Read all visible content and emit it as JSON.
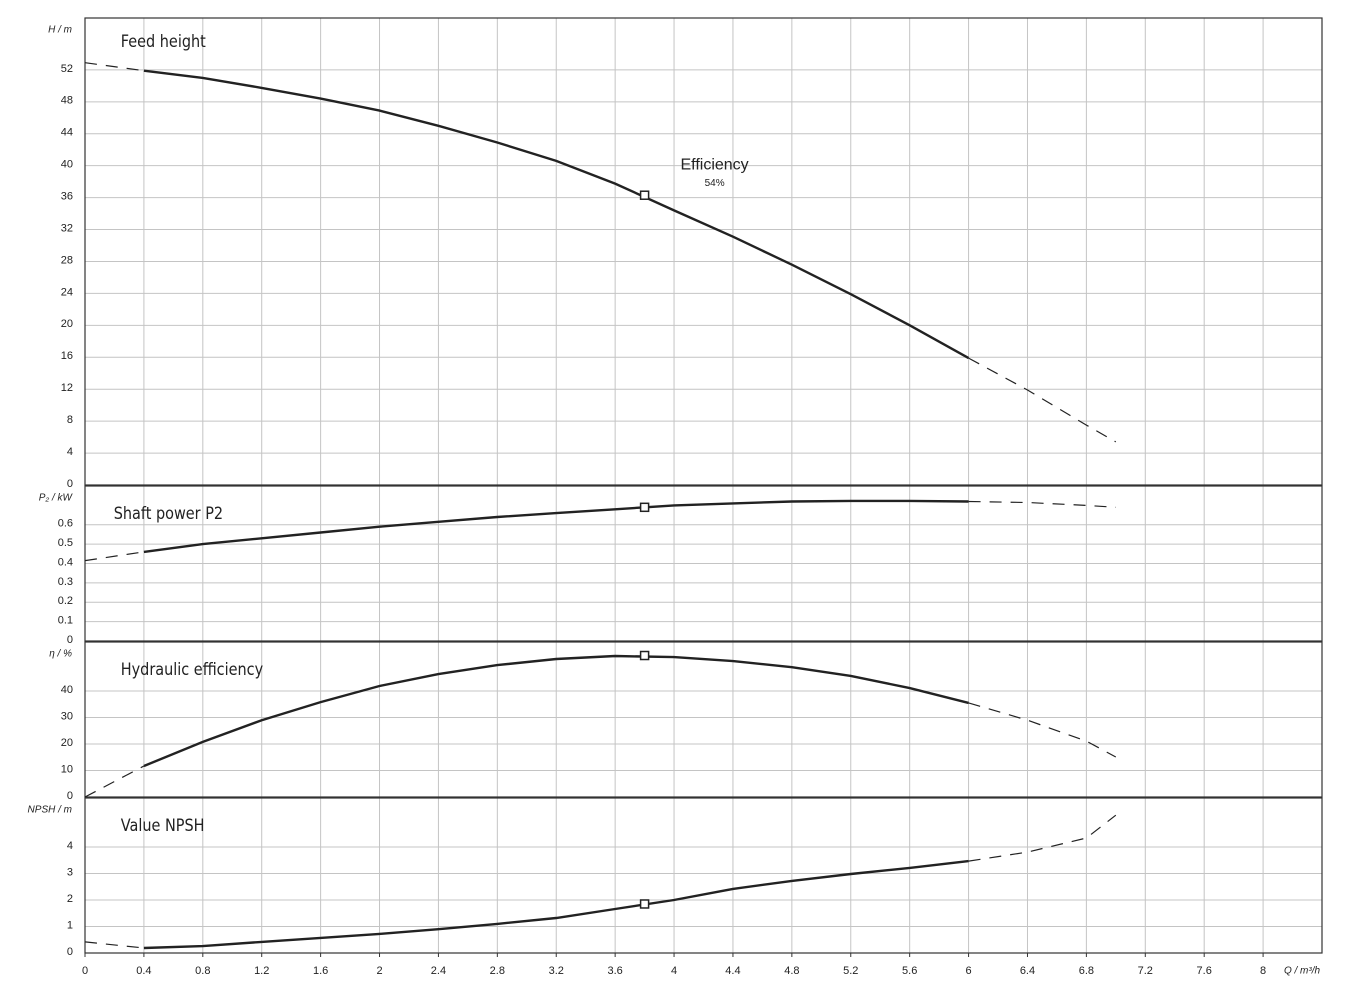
{
  "chart_data": [
    {
      "type": "line",
      "title": "Feed height",
      "ylabel": "H / m",
      "annotation": [
        "Efficiency",
        "54%"
      ],
      "x": [
        0,
        0.4,
        0.8,
        1.2,
        1.6,
        2,
        2.4,
        2.8,
        3.2,
        3.6,
        4,
        4.4,
        4.8,
        5.2,
        5.6,
        6,
        6.4,
        6.8,
        7
      ],
      "series": [
        {
          "linestyle": "solid",
          "color": "#222222",
          "values": [
            null,
            51.9,
            51,
            49.75,
            48.4,
            46.9,
            45,
            42.9,
            40.6,
            37.75,
            34.4,
            31.1,
            27.6,
            23.9,
            20,
            15.9,
            null,
            null,
            null
          ]
        },
        {
          "linestyle": "dashed",
          "color": "#222222",
          "values": [
            52.9,
            51.9,
            null,
            null,
            null,
            null,
            null,
            null,
            null,
            null,
            null,
            null,
            null,
            null,
            null,
            15.9,
            11.9,
            7.5,
            5.4
          ]
        }
      ],
      "operating_point": {
        "x": 3.8,
        "y": 36.3
      },
      "xlim": [
        0,
        8.4
      ],
      "xticks": [
        0,
        0.4,
        0.8,
        1.2,
        1.6,
        2,
        2.4,
        2.8,
        3.2,
        3.6,
        4,
        4.4,
        4.8,
        5.2,
        5.6,
        6,
        6.4,
        6.8,
        7.2,
        7.6,
        8
      ],
      "ylim": [
        0,
        58.5
      ],
      "yticks": [
        0,
        4,
        8,
        12,
        16,
        20,
        24,
        28,
        32,
        36,
        40,
        44,
        48,
        52
      ],
      "grid": true
    },
    {
      "type": "line",
      "title": "Shaft power P2",
      "ylabel": "P₂ / kW",
      "x": [
        0,
        0.4,
        0.8,
        1.2,
        1.6,
        2,
        2.4,
        2.8,
        3.2,
        3.6,
        4,
        4.4,
        4.8,
        5.2,
        5.6,
        6,
        6.4,
        6.8,
        7
      ],
      "series": [
        {
          "linestyle": "solid",
          "color": "#222222",
          "values": [
            null,
            0.46,
            0.5,
            0.53,
            0.56,
            0.59,
            0.615,
            0.64,
            0.66,
            0.68,
            0.7,
            0.71,
            0.72,
            0.723,
            0.723,
            0.72,
            null,
            null,
            null
          ]
        },
        {
          "linestyle": "dashed",
          "color": "#222222",
          "values": [
            0.415,
            0.46,
            null,
            null,
            null,
            null,
            null,
            null,
            null,
            null,
            null,
            null,
            null,
            null,
            null,
            0.72,
            0.715,
            0.7,
            0.69
          ]
        }
      ],
      "operating_point": {
        "x": 3.8,
        "y": 0.69
      },
      "xlim": [
        0,
        8.4
      ],
      "xticks": [
        0,
        0.4,
        0.8,
        1.2,
        1.6,
        2,
        2.4,
        2.8,
        3.2,
        3.6,
        4,
        4.4,
        4.8,
        5.2,
        5.6,
        6,
        6.4,
        6.8,
        7.2,
        7.6,
        8
      ],
      "ylim": [
        0,
        0.8
      ],
      "yticks": [
        0,
        0.1,
        0.2,
        0.3,
        0.4,
        0.5,
        0.6
      ],
      "grid": true
    },
    {
      "type": "line",
      "title": "Hydraulic efficiency",
      "ylabel": "η / %",
      "x": [
        0,
        0.4,
        0.8,
        1.2,
        1.6,
        2,
        2.4,
        2.8,
        3.2,
        3.6,
        4,
        4.4,
        4.8,
        5.2,
        5.6,
        6,
        6.4,
        6.8,
        7
      ],
      "series": [
        {
          "linestyle": "solid",
          "color": "#222222",
          "values": [
            null,
            11.7,
            20.8,
            29,
            35.8,
            41.9,
            46.4,
            49.8,
            52.1,
            53.2,
            52.8,
            51.3,
            49,
            45.7,
            41.1,
            35.5,
            null,
            null,
            null
          ]
        },
        {
          "linestyle": "dashed",
          "color": "#222222",
          "values": [
            0,
            11.7,
            null,
            null,
            null,
            null,
            null,
            null,
            null,
            null,
            null,
            null,
            null,
            null,
            null,
            35.5,
            29,
            21.1,
            15.1
          ]
        }
      ],
      "operating_point": {
        "x": 3.8,
        "y": 53.4
      },
      "xlim": [
        0,
        8.4
      ],
      "xticks": [
        0,
        0.4,
        0.8,
        1.2,
        1.6,
        2,
        2.4,
        2.8,
        3.2,
        3.6,
        4,
        4.4,
        4.8,
        5.2,
        5.6,
        6,
        6.4,
        6.8,
        7.2,
        7.6,
        8
      ],
      "ylim": [
        0,
        58.5
      ],
      "yticks": [
        0,
        10,
        20,
        30,
        40
      ],
      "grid": true
    },
    {
      "type": "line",
      "title": "Value NPSH",
      "ylabel": "NPSH / m",
      "xlabel": "Q / m³/h",
      "x": [
        0,
        0.4,
        0.8,
        1.2,
        1.6,
        2,
        2.4,
        2.8,
        3.2,
        3.6,
        4,
        4.4,
        4.8,
        5.2,
        5.6,
        6,
        6.4,
        6.8,
        7
      ],
      "series": [
        {
          "linestyle": "solid",
          "color": "#222222",
          "values": [
            null,
            0.19,
            0.26,
            0.42,
            0.57,
            0.72,
            0.9,
            1.1,
            1.32,
            1.66,
            2,
            2.42,
            2.72,
            2.98,
            3.21,
            3.47,
            null,
            null,
            null
          ]
        },
        {
          "linestyle": "dashed",
          "color": "#222222",
          "values": [
            0.42,
            0.19,
            null,
            null,
            null,
            null,
            null,
            null,
            null,
            null,
            null,
            null,
            null,
            null,
            null,
            3.47,
            3.81,
            4.34,
            5.2
          ]
        }
      ],
      "operating_point": {
        "x": 3.8,
        "y": 1.85
      },
      "xlim": [
        0,
        8.4
      ],
      "xticks": [
        0,
        0.4,
        0.8,
        1.2,
        1.6,
        2,
        2.4,
        2.8,
        3.2,
        3.6,
        4,
        4.4,
        4.8,
        5.2,
        5.6,
        6,
        6.4,
        6.8,
        7.2,
        7.6,
        8
      ],
      "ylim": [
        0,
        5.85
      ],
      "yticks": [
        0,
        1,
        2,
        3,
        4
      ],
      "grid": true
    }
  ]
}
